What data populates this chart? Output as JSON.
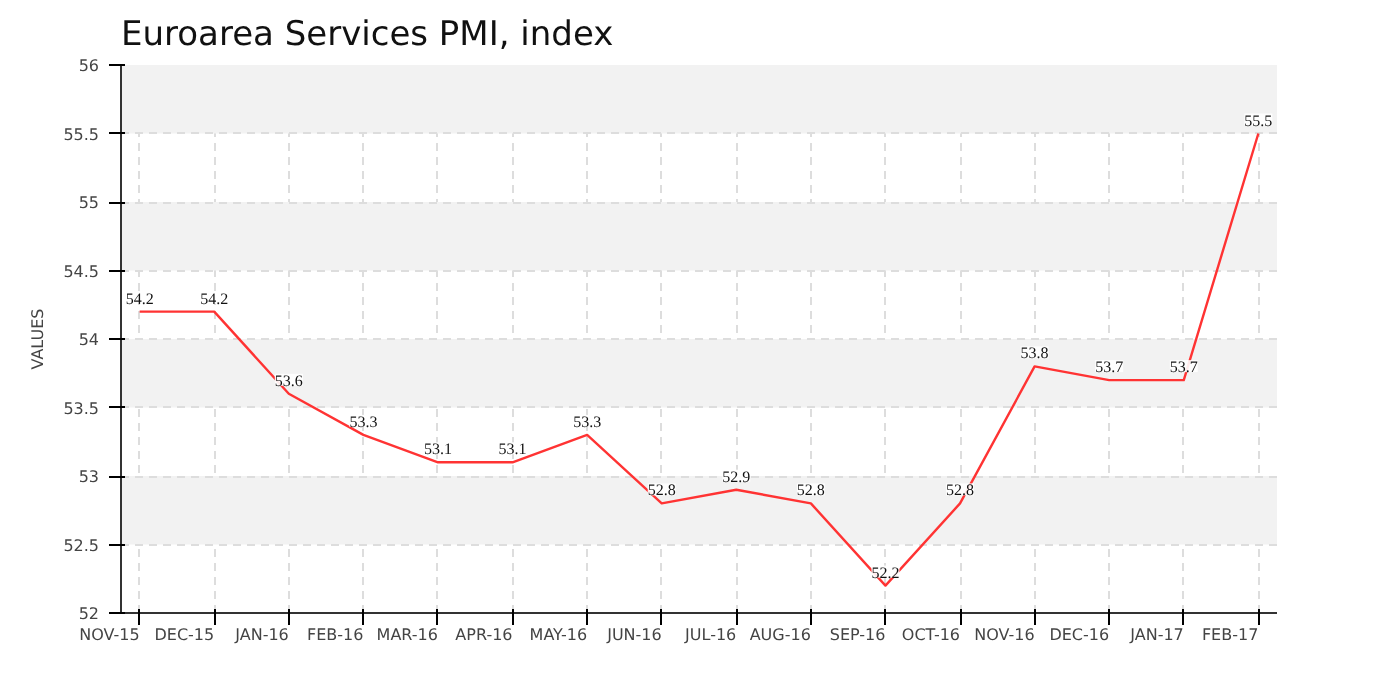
{
  "chart_data": {
    "type": "line",
    "title": "Euroarea Services PMI, index",
    "ylabel": "VALUES",
    "categories": [
      "NOV-15",
      "DEC-15",
      "JAN-16",
      "FEB-16",
      "MAR-16",
      "APR-16",
      "MAY-16",
      "JUN-16",
      "JUL-16",
      "AUG-16",
      "SEP-16",
      "OCT-16",
      "NOV-16",
      "DEC-16",
      "JAN-17",
      "FEB-17"
    ],
    "series": [
      {
        "color": "#ff3333",
        "values": [
          54.2,
          54.2,
          53.6,
          53.3,
          53.1,
          53.1,
          53.3,
          52.8,
          52.9,
          52.8,
          52.2,
          52.8,
          53.8,
          53.7,
          53.7,
          55.5
        ]
      }
    ],
    "ylim": [
      52,
      56
    ],
    "yticks": [
      52,
      52.5,
      53,
      53.5,
      54,
      54.5,
      55,
      55.5,
      56
    ],
    "grid": true,
    "data_labels": true,
    "line_style": "solid",
    "marker": "none"
  }
}
